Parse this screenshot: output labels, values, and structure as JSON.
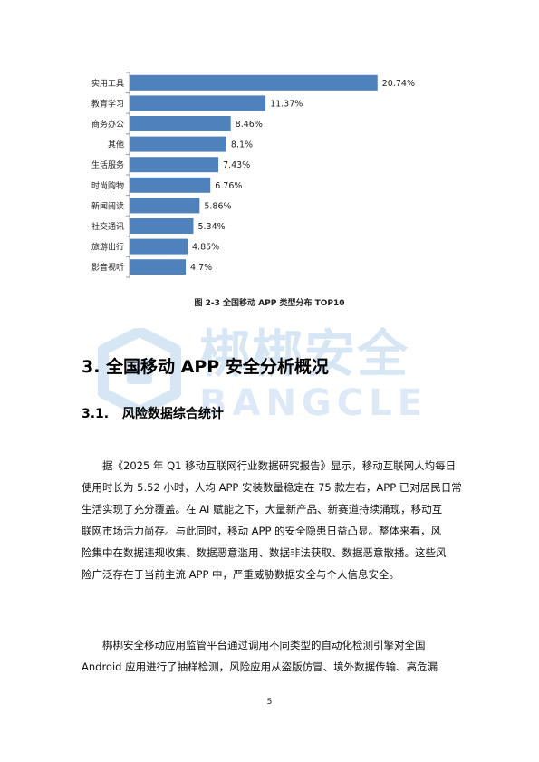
{
  "chart_data": {
    "type": "bar",
    "orientation": "horizontal",
    "categories": [
      "实用工具",
      "教育学习",
      "商务办公",
      "其他",
      "生活服务",
      "时尚购物",
      "新闻阅读",
      "社交通讯",
      "旅游出行",
      "影音视听"
    ],
    "values": [
      20.74,
      11.37,
      8.46,
      8.1,
      7.43,
      6.76,
      5.86,
      5.34,
      4.85,
      4.7
    ],
    "value_labels": [
      "20.74%",
      "11.37%",
      "8.46%",
      "8.1%",
      "7.43%",
      "6.76%",
      "5.86%",
      "5.34%",
      "4.85%",
      "4.7%"
    ],
    "xlim": [
      0,
      25
    ],
    "grid": false,
    "color": "#4f81bd"
  },
  "caption": "图 2-3  全国移动 APP 类型分布 TOP10",
  "watermark": {
    "text_cn": "梆梆安全",
    "text_en": "BANGCLE",
    "color": "#d7e6f4"
  },
  "heading1": "3. 全国移动 APP 安全分析概况",
  "heading2": {
    "number": "3.1.",
    "title": "风险数据综合统计"
  },
  "paragraph1": [
    "据《2025 年 Q1 移动互联网行业数据研究报告》显示，移动互联网人均每日",
    "使用时长为 5.52 小时，人均 APP 安装数量稳定在 75 款左右，APP 已对居民日常",
    "生活实现了充分覆盖。在 AI 赋能之下，大量新产品、新赛道持续涌现，移动互",
    "联网市场活力尚存。与此同时，移动 APP 的安全隐患日益凸显。整体来看，风",
    "险集中在数据违规收集、数据恶意滥用、数据非法获取、数据恶意散播。这些风",
    "险广泛存在于当前主流 APP 中，严重威胁数据安全与个人信息安全。"
  ],
  "paragraph2": [
    "梆梆安全移动应用监管平台通过调用不同类型的自动化检测引擎对全国",
    "Android 应用进行了抽样检测，风险应用从盗版仿冒、境外数据传输、高危漏"
  ],
  "page_number": "5"
}
